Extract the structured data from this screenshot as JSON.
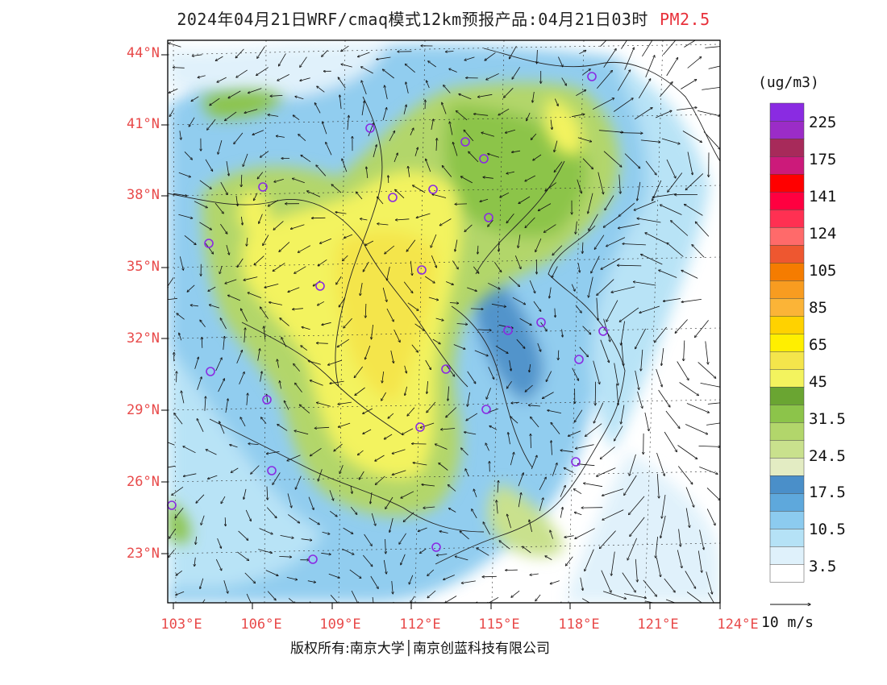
{
  "title": {
    "text": "2024年04月21日WRF/cmaq模式12km预报产品:04月21日03时",
    "species": "PM2.5"
  },
  "axes": {
    "lat_labels": [
      "44°N",
      "41°N",
      "38°N",
      "35°N",
      "32°N",
      "29°N",
      "26°N",
      "23°N"
    ],
    "lon_labels": [
      "103°E",
      "106°E",
      "109°E",
      "112°E",
      "115°E",
      "118°E",
      "121°E",
      "124°E"
    ]
  },
  "legend": {
    "unit": "(ug/m3)",
    "colors": [
      "#ffffff",
      "#dff1fb",
      "#b5e2f6",
      "#8ccbef",
      "#5ea8dc",
      "#4a8fc9",
      "#e3ecc3",
      "#c9e18d",
      "#b2d66b",
      "#8cc44a",
      "#6aa532",
      "#f3f35e",
      "#f4e54b",
      "#ffef00",
      "#ffd200",
      "#fbb437",
      "#f89c20",
      "#f57c00",
      "#ee5730",
      "#ff6a6a",
      "#ff3052",
      "#ff0040",
      "#ff0000",
      "#cc1a7a",
      "#a72a5a",
      "#9b2cc7",
      "#8a2be2"
    ],
    "labels": [
      "3.5",
      "10.5",
      "17.5",
      "24.5",
      "31.5",
      "45",
      "65",
      "85",
      "105",
      "124",
      "141",
      "175",
      "225"
    ]
  },
  "wind_reference": "10 m/s",
  "copyright": "版权所有:南京大学│南京创蓝科技有限公司",
  "city_marker_color": "#8a2be2"
}
